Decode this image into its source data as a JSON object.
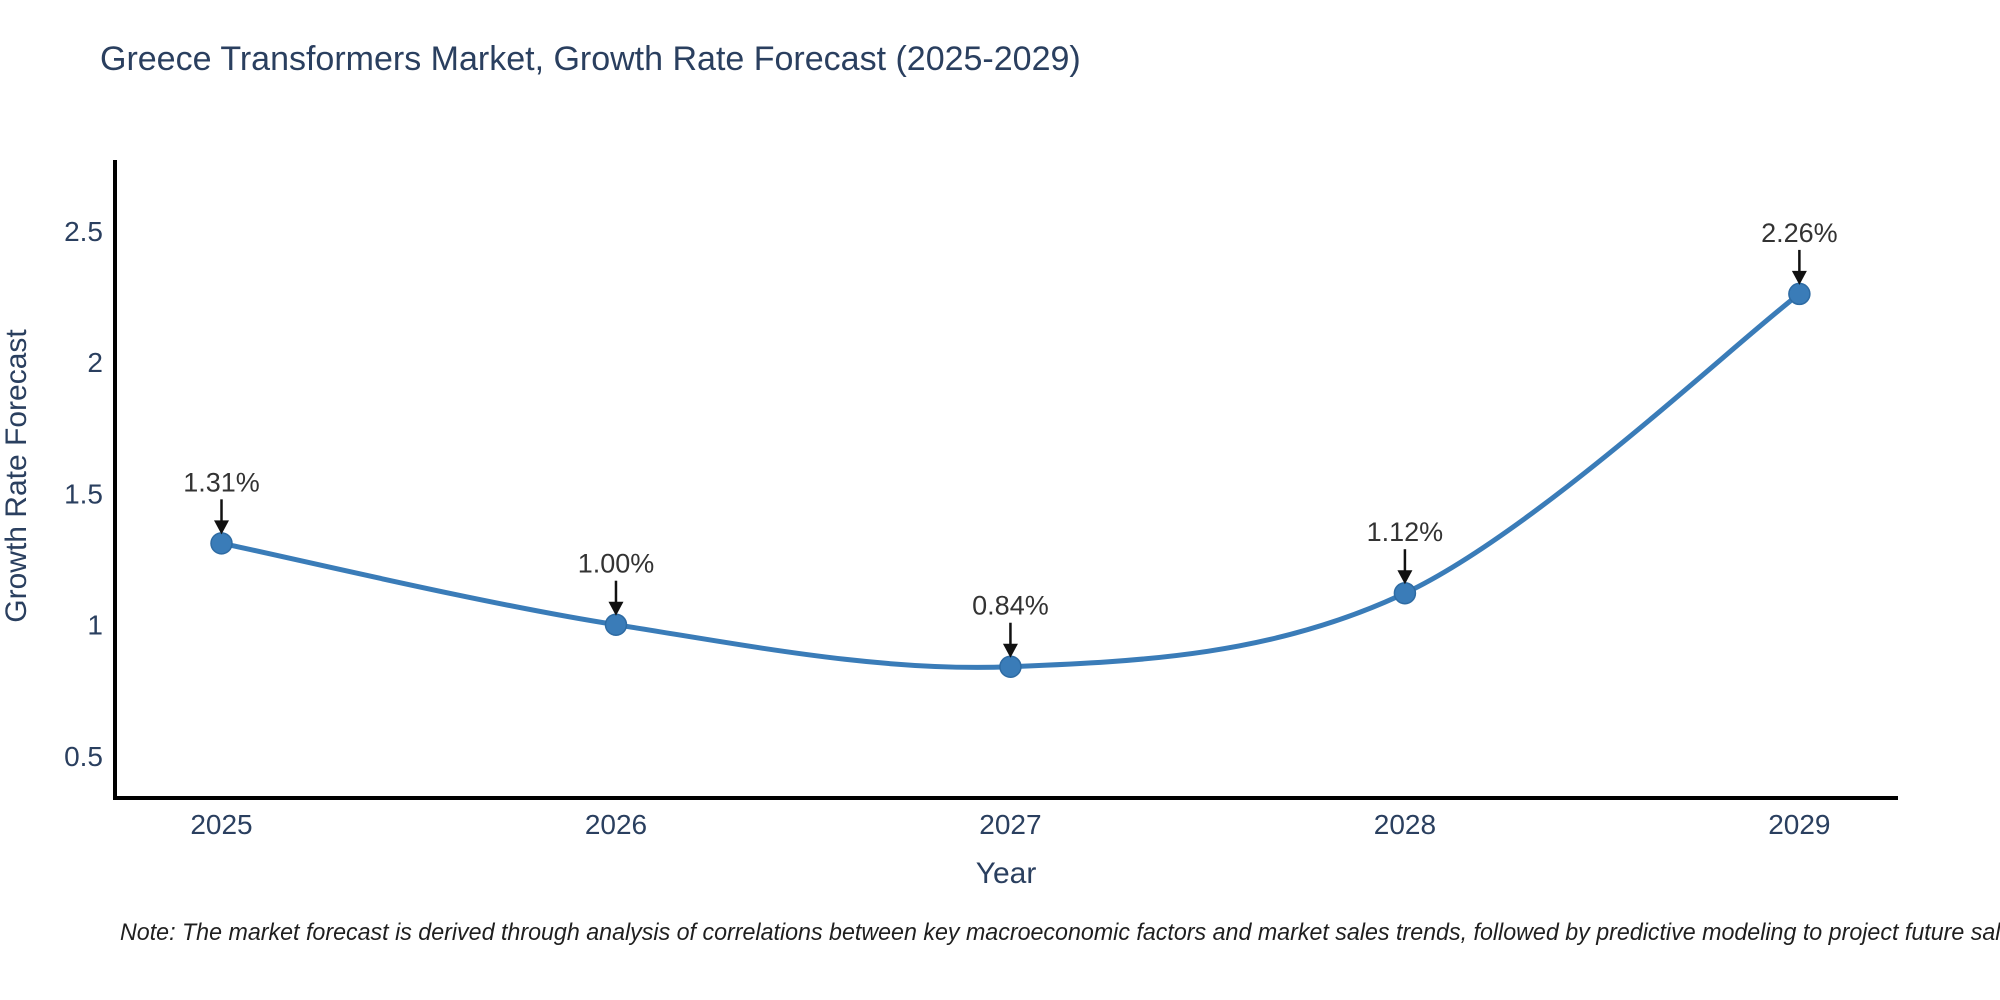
{
  "chart_data": {
    "type": "line",
    "title": "Greece Transformers Market, Growth Rate Forecast (2025-2029)",
    "xlabel": "Year",
    "ylabel": "Growth Rate Forecast",
    "x": [
      2025,
      2026,
      2027,
      2028,
      2029
    ],
    "y": [
      1.31,
      1.0,
      0.84,
      1.12,
      2.26
    ],
    "point_labels": [
      "1.31%",
      "1.00%",
      "0.84%",
      "1.12%",
      "2.26%"
    ],
    "x_tick_labels": [
      "2025",
      "2026",
      "2027",
      "2028",
      "2029"
    ],
    "y_ticks": [
      0.5,
      1,
      1.5,
      2,
      2.5
    ],
    "y_tick_labels": [
      "0.5",
      "1",
      "1.5",
      "2",
      "2.5"
    ],
    "xlim": [
      2024.73,
      2029.25
    ],
    "ylim": [
      0.34,
      2.77
    ],
    "grid": false,
    "line_shape": "spline",
    "legend": "none",
    "colors": {
      "line": "#3a7cb8",
      "marker": "#3a7cb8",
      "marker_edge": "#2e6ba3",
      "axis": "#000000",
      "title_text": "#2a3f5f",
      "tick_text": "#2a3f5f",
      "annotation_text": "#333333",
      "arrow": "#111111",
      "note_text": "#1f1f1f",
      "background": "#ffffff"
    }
  },
  "note": {
    "text": "Note: The market forecast is derived through analysis of correlations between key macroeconomic factors and market sales trends, followed by predictive modeling to project future sales"
  }
}
